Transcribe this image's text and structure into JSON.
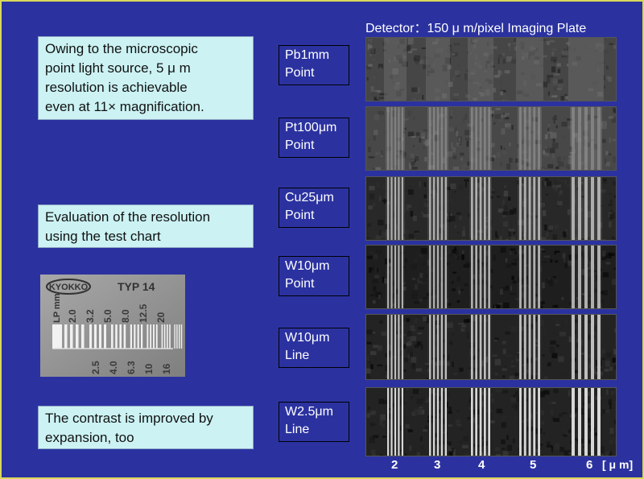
{
  "header": "Detector：150 μ m/pixel   Imaging Plate",
  "notes": {
    "point_source": "Owing to the microscopic\npoint light source, 5 μ m\nresolution is achievable\neven at 11× magnification.",
    "evaluation": "Evaluation of the resolution\nusing the test chart",
    "contrast": "The contrast is improved by\nexpansion, too"
  },
  "sources": [
    {
      "label": "Pb1mm\nPoint"
    },
    {
      "label": "Pt100μm\nPoint"
    },
    {
      "label": "Cu25μm\nPoint"
    },
    {
      "label": "W10μm\nPoint"
    },
    {
      "label": "W10μm\nLine"
    },
    {
      "label": "W2.5μm\nLine"
    }
  ],
  "x_ticks": [
    "2",
    "3",
    "4",
    "5",
    "6"
  ],
  "x_unit": "[ μ m]",
  "test_chart": {
    "brand": "KYOKKO",
    "model": "TYP 14",
    "unit": "LP mm",
    "upper_values": [
      "2.0",
      "3.2",
      "5.0",
      "8.0",
      "12.5",
      "20"
    ],
    "lower_values": [
      "2.5",
      "4.0",
      "6.3",
      "10",
      "16"
    ]
  },
  "colors": {
    "background": "#2b32a0",
    "frame": "#d9d85a",
    "note_fill": "#ccf2f3"
  }
}
